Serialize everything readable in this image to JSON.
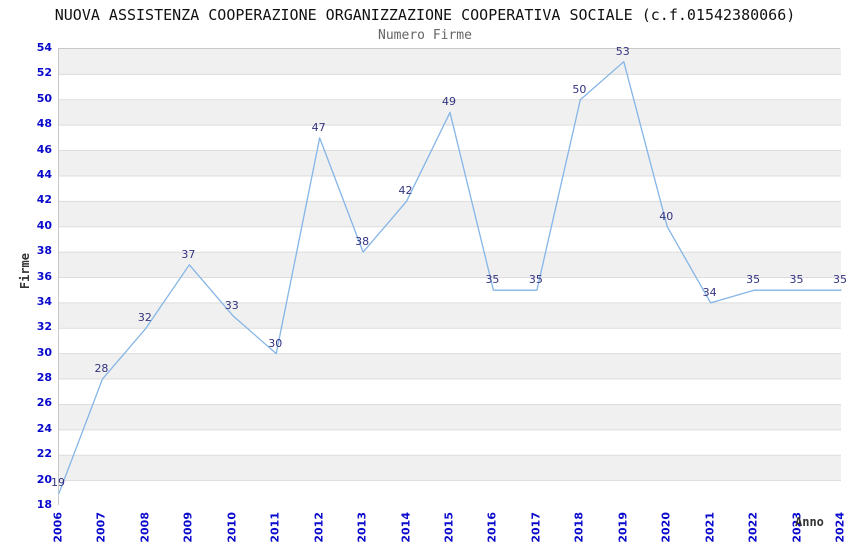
{
  "page": {
    "title": "NUOVA ASSISTENZA COOPERAZIONE ORGANIZZAZIONE COOPERATIVA SOCIALE (c.f.01542380066)",
    "subtitle": "Numero Firme"
  },
  "chart_data": {
    "type": "line",
    "title": "NUOVA ASSISTENZA COOPERAZIONE ORGANIZZAZIONE COOPERATIVA SOCIALE (c.f.01542380066)",
    "subtitle": "Numero Firme",
    "xlabel": "Anno",
    "ylabel": "Firme",
    "categories": [
      "2006",
      "2007",
      "2008",
      "2009",
      "2010",
      "2011",
      "2012",
      "2013",
      "2014",
      "2015",
      "2016",
      "2017",
      "2018",
      "2019",
      "2020",
      "2021",
      "2022",
      "2023",
      "2024"
    ],
    "series": [
      {
        "name": "Numero Firme",
        "values": [
          19,
          28,
          32,
          37,
          33,
          30,
          47,
          38,
          42,
          49,
          35,
          35,
          50,
          53,
          40,
          34,
          35,
          35,
          35
        ]
      }
    ],
    "ylim": [
      18,
      54
    ],
    "ytick_step": 2,
    "grid": "horizontal-alternating-bands",
    "legend_position": "none",
    "point_labels_visible": true,
    "xtick_rotation_degrees": -90,
    "colors": {
      "line": "#85b5e7",
      "point_label": "#333380",
      "tick_label": "#0a0acc",
      "band_shaded": "#f0f0f0",
      "band_plain": "#ffffff",
      "gridline": "#dddddd",
      "plot_border": "#c8c8c8",
      "axis_title": "#333333",
      "title": "#111111",
      "subtitle": "#666666"
    }
  }
}
